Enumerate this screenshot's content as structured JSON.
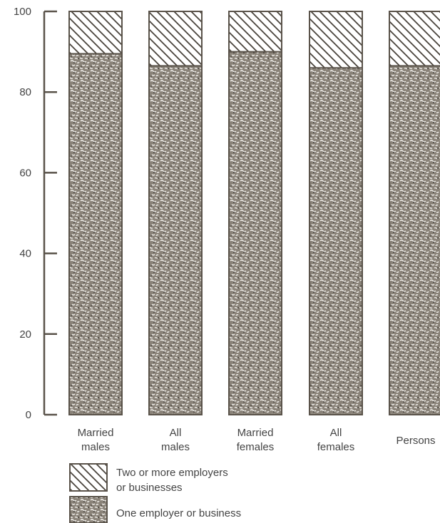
{
  "chart_data": {
    "type": "bar",
    "stacked": true,
    "title": "",
    "xlabel": "",
    "ylabel": "",
    "ylim": [
      0,
      100
    ],
    "yticks": [
      0,
      20,
      40,
      60,
      80,
      100
    ],
    "categories": [
      [
        "Married",
        "males"
      ],
      [
        "All",
        "males"
      ],
      [
        "Married",
        "females"
      ],
      [
        "All",
        "females"
      ],
      [
        "Persons"
      ]
    ],
    "series": [
      {
        "name": "One employer or business",
        "pattern": "stipple",
        "values": [
          89.5,
          86.5,
          90,
          86,
          86.5
        ]
      },
      {
        "name": "Two or more employers or businesses",
        "legend_lines": [
          "Two or more employers",
          "or businesses"
        ],
        "pattern": "hatch",
        "values": [
          10.5,
          13.5,
          10,
          14,
          13.5
        ]
      }
    ],
    "legend_placement": "bottom-left",
    "grid": false,
    "colors": {
      "ink": "#5a534a",
      "paper": "#ffffff"
    }
  }
}
